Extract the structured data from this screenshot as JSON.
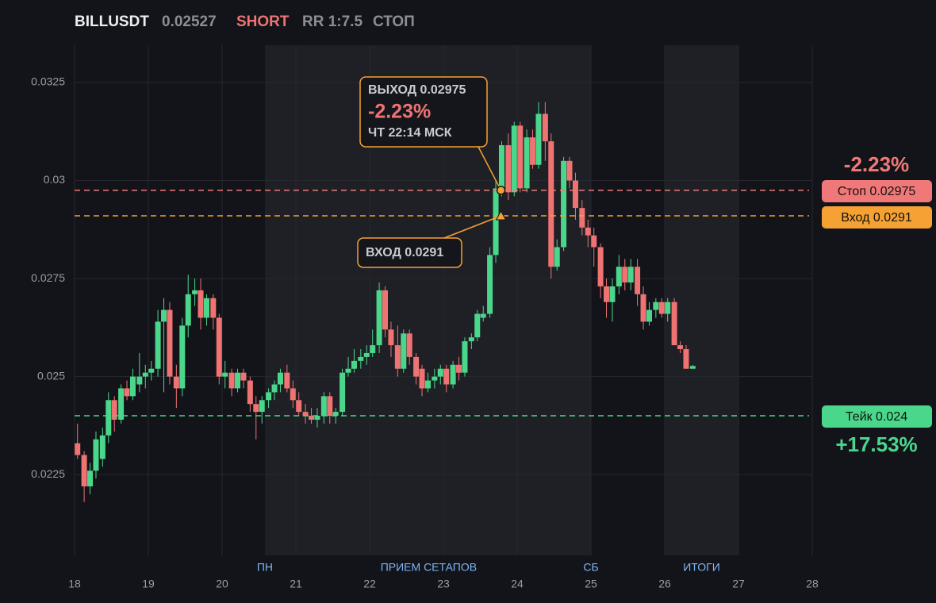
{
  "chart_data": {
    "type": "candlestick",
    "title": "BILLUSDT",
    "header": {
      "price": "0.02527",
      "side": "SHORT",
      "rr": "RR 1:7.5",
      "status": "СТОП"
    },
    "xlim": [
      18,
      28
    ],
    "xticks": [
      18,
      19,
      20,
      21,
      22,
      23,
      24,
      25,
      26,
      27,
      28
    ],
    "ylim": [
      0.02044,
      0.03345
    ],
    "yticks": [
      0.0225,
      0.025,
      0.0275,
      0.03,
      0.0325
    ],
    "grid": true,
    "up_color": "#4ad78b",
    "down_color": "#ef7373",
    "shaded": [
      [
        20.58,
        25
      ],
      [
        26,
        27
      ]
    ],
    "sessions": [
      {
        "label": "ПН",
        "x": 20.58
      },
      {
        "label": "ПРИЕМ СЕТАПОВ",
        "x": 22.8
      },
      {
        "label": "СБ",
        "x": 25
      },
      {
        "label": "ИТОГИ",
        "x": 26.5
      }
    ],
    "levels": [
      {
        "name": "Стоп",
        "value": 0.02975,
        "label": "Стоп 0.02975",
        "color": "#f07878",
        "pct": "-2.23%"
      },
      {
        "name": "Вход",
        "value": 0.0291,
        "label": "Вход 0.0291",
        "color": "#f5a133"
      },
      {
        "name": "Тейк",
        "value": 0.024,
        "label": "Тейк 0.024",
        "color": "#4ad78b",
        "pct": "+17.53%"
      }
    ],
    "exit": {
      "x": 23.78,
      "price": 0.02975,
      "label": "ВЫХОД 0.02975",
      "pct": "-2.23%",
      "time": "ЧТ 22:14 МСК"
    },
    "entry": {
      "x": 23.78,
      "price": 0.0291,
      "label": "ВХОД 0.0291"
    },
    "x": [
      18.04,
      18.13,
      18.21,
      18.29,
      18.38,
      18.46,
      18.54,
      18.63,
      18.71,
      18.79,
      18.88,
      18.96,
      19.04,
      19.13,
      19.21,
      19.29,
      19.38,
      19.46,
      19.54,
      19.63,
      19.71,
      19.79,
      19.88,
      19.96,
      20.04,
      20.13,
      20.21,
      20.29,
      20.38,
      20.46,
      20.54,
      20.63,
      20.71,
      20.79,
      20.88,
      20.96,
      21.04,
      21.13,
      21.21,
      21.29,
      21.38,
      21.46,
      21.54,
      21.63,
      21.71,
      21.79,
      21.88,
      21.96,
      22.04,
      22.13,
      22.21,
      22.29,
      22.38,
      22.46,
      22.54,
      22.63,
      22.71,
      22.79,
      22.88,
      22.96,
      23.04,
      23.13,
      23.21,
      23.29,
      23.38,
      23.46,
      23.54,
      23.63,
      23.71,
      23.79,
      23.88,
      23.96,
      24.04,
      24.13,
      24.21,
      24.29,
      24.38,
      24.46,
      24.54,
      24.63,
      24.71,
      24.79,
      24.88,
      24.96,
      25.04,
      25.13,
      25.21,
      25.29,
      25.38,
      25.46,
      25.54,
      25.63,
      25.71,
      25.79,
      25.88,
      25.96,
      26.04,
      26.13,
      26.21,
      26.29,
      26.38
    ],
    "open": [
      0.0233,
      0.023,
      0.0222,
      0.0226,
      0.0229,
      0.0235,
      0.0244,
      0.0239,
      0.0247,
      0.0245,
      0.0248,
      0.025,
      0.0251,
      0.0252,
      0.0264,
      0.0267,
      0.025,
      0.0247,
      0.0263,
      0.0271,
      0.0272,
      0.0265,
      0.027,
      0.0265,
      0.025,
      0.0251,
      0.0247,
      0.0251,
      0.0249,
      0.0243,
      0.0241,
      0.0244,
      0.0246,
      0.0248,
      0.0251,
      0.0247,
      0.0244,
      0.0241,
      0.024,
      0.0239,
      0.024,
      0.0245,
      0.024,
      0.0241,
      0.0251,
      0.0252,
      0.0254,
      0.0255,
      0.0256,
      0.0258,
      0.0272,
      0.0262,
      0.0258,
      0.0252,
      0.0261,
      0.0255,
      0.0252,
      0.0247,
      0.0249,
      0.025,
      0.0252,
      0.0248,
      0.0253,
      0.0251,
      0.0259,
      0.026,
      0.0265,
      0.0266,
      0.0281,
      0.0298,
      0.0309,
      0.0297,
      0.0314,
      0.0298,
      0.0311,
      0.0304,
      0.0317,
      0.031,
      0.0278,
      0.0283,
      0.0305,
      0.03,
      0.0293,
      0.0288,
      0.0286,
      0.0283,
      0.0273,
      0.0269,
      0.0273,
      0.0278,
      0.0274,
      0.0278,
      0.0271,
      0.0264,
      0.0267,
      0.0269,
      0.0266,
      0.0269,
      0.0258,
      0.0257,
      0.0252
    ],
    "high": [
      0.0238,
      0.0231,
      0.0228,
      0.0236,
      0.0237,
      0.0246,
      0.0245,
      0.0248,
      0.0249,
      0.0252,
      0.0256,
      0.0253,
      0.0254,
      0.0267,
      0.027,
      0.0269,
      0.0253,
      0.0265,
      0.0276,
      0.0275,
      0.0275,
      0.0271,
      0.0271,
      0.0266,
      0.0254,
      0.0252,
      0.0252,
      0.0252,
      0.025,
      0.0245,
      0.0245,
      0.0247,
      0.0249,
      0.0252,
      0.0253,
      0.0249,
      0.0246,
      0.0243,
      0.0242,
      0.0242,
      0.0246,
      0.0246,
      0.0242,
      0.0252,
      0.0255,
      0.0257,
      0.0257,
      0.0258,
      0.0262,
      0.0274,
      0.0273,
      0.0264,
      0.0263,
      0.0262,
      0.0262,
      0.0256,
      0.0253,
      0.0251,
      0.0252,
      0.0253,
      0.0253,
      0.0254,
      0.0255,
      0.026,
      0.0261,
      0.0267,
      0.0268,
      0.0283,
      0.03,
      0.031,
      0.0312,
      0.0315,
      0.0315,
      0.0313,
      0.0313,
      0.032,
      0.032,
      0.0312,
      0.0285,
      0.0306,
      0.0306,
      0.0302,
      0.0295,
      0.029,
      0.0288,
      0.0284,
      0.0275,
      0.0275,
      0.0281,
      0.028,
      0.028,
      0.028,
      0.0273,
      0.0269,
      0.027,
      0.027,
      0.027,
      0.027,
      0.0259,
      0.0258,
      0.0253
    ],
    "low": [
      0.0229,
      0.0218,
      0.022,
      0.0224,
      0.0227,
      0.0233,
      0.0236,
      0.0238,
      0.0244,
      0.0244,
      0.0246,
      0.0247,
      0.0249,
      0.025,
      0.0246,
      0.0248,
      0.0242,
      0.0245,
      0.026,
      0.0268,
      0.0262,
      0.0263,
      0.0262,
      0.0248,
      0.0247,
      0.0245,
      0.0246,
      0.0247,
      0.0241,
      0.0234,
      0.0238,
      0.0242,
      0.0244,
      0.0246,
      0.0246,
      0.0242,
      0.024,
      0.0238,
      0.0238,
      0.0237,
      0.0238,
      0.0238,
      0.0238,
      0.024,
      0.025,
      0.0251,
      0.0252,
      0.0253,
      0.0255,
      0.0256,
      0.026,
      0.0255,
      0.025,
      0.0251,
      0.0253,
      0.0248,
      0.0245,
      0.0246,
      0.0247,
      0.0248,
      0.0246,
      0.0247,
      0.0249,
      0.025,
      0.0257,
      0.0259,
      0.0264,
      0.0265,
      0.0279,
      0.0296,
      0.0295,
      0.0296,
      0.0297,
      0.0297,
      0.0303,
      0.0303,
      0.0305,
      0.0275,
      0.0277,
      0.0282,
      0.0298,
      0.029,
      0.0286,
      0.0283,
      0.0278,
      0.027,
      0.0265,
      0.0264,
      0.0271,
      0.0272,
      0.0272,
      0.0268,
      0.0262,
      0.0263,
      0.0265,
      0.0265,
      0.0264,
      0.0258,
      0.0256,
      0.0252,
      0.0252
    ],
    "close": [
      0.023,
      0.0222,
      0.0226,
      0.0234,
      0.0235,
      0.0244,
      0.0239,
      0.0247,
      0.0245,
      0.025,
      0.025,
      0.0251,
      0.0252,
      0.0264,
      0.0267,
      0.025,
      0.0247,
      0.0263,
      0.0271,
      0.0272,
      0.0265,
      0.027,
      0.0265,
      0.025,
      0.0251,
      0.0247,
      0.0251,
      0.0249,
      0.0243,
      0.0241,
      0.0244,
      0.0246,
      0.0248,
      0.0251,
      0.0247,
      0.0244,
      0.0241,
      0.024,
      0.0239,
      0.024,
      0.0245,
      0.024,
      0.0241,
      0.0251,
      0.0252,
      0.0254,
      0.0255,
      0.0256,
      0.0258,
      0.0272,
      0.0262,
      0.0258,
      0.0252,
      0.0261,
      0.0255,
      0.025,
      0.0247,
      0.0249,
      0.025,
      0.0252,
      0.0248,
      0.0253,
      0.0251,
      0.0259,
      0.026,
      0.0266,
      0.0266,
      0.0281,
      0.0298,
      0.0309,
      0.0297,
      0.0314,
      0.0298,
      0.0311,
      0.0304,
      0.0317,
      0.031,
      0.0278,
      0.0283,
      0.0305,
      0.03,
      0.0293,
      0.0288,
      0.0286,
      0.0283,
      0.0273,
      0.0269,
      0.0273,
      0.0278,
      0.0274,
      0.0278,
      0.0271,
      0.0264,
      0.0267,
      0.0269,
      0.0266,
      0.0269,
      0.0258,
      0.0257,
      0.0252,
      0.02527
    ]
  }
}
